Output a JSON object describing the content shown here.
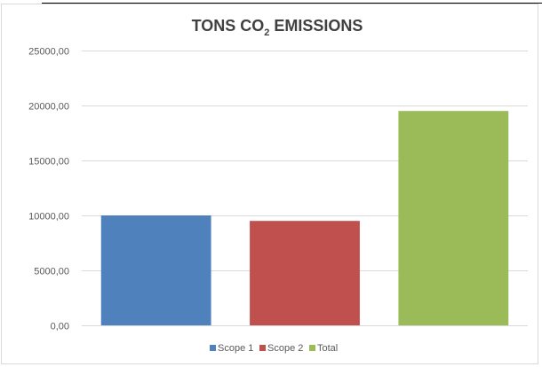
{
  "chart_data": {
    "type": "bar",
    "title_main": "TONS CO",
    "title_sub": "2",
    "title_rest": " EMISSIONS",
    "categories": [
      "Scope 1",
      "Scope 2",
      "Total"
    ],
    "values": [
      10000,
      9500,
      19500
    ],
    "colors": [
      "#4f81bd",
      "#c0504d",
      "#9bbb59"
    ],
    "ylim": [
      0,
      25000
    ],
    "yticks": [
      0,
      5000,
      10000,
      15000,
      20000,
      25000
    ],
    "ytick_labels": [
      "0,00",
      "5000,00",
      "10000,00",
      "15000,00",
      "20000,00",
      "25000,00"
    ],
    "grid": true,
    "legend": [
      "Scope 1",
      "Scope 2",
      "Total"
    ],
    "legend_position": "bottom"
  }
}
